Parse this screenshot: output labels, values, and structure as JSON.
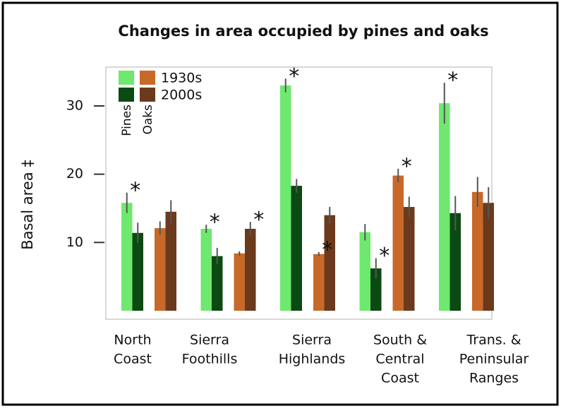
{
  "chart_data": {
    "type": "bar",
    "title": "Changes in area occupied by pines and oaks",
    "y_label": "Basal area ‡",
    "categories": [
      [
        "North",
        "Coast"
      ],
      [
        "Sierra",
        "Foothills"
      ],
      [
        "Sierra",
        "Highlands"
      ],
      [
        "South &",
        "Central",
        "Coast"
      ],
      [
        "Trans. &",
        "Peninsular",
        "Ranges"
      ]
    ],
    "series": [
      {
        "color": "#6ee86e",
        "values": [
          15.8,
          12.0,
          33.0,
          11.5,
          30.4
        ],
        "errors": [
          1.5,
          0.6,
          1.0,
          1.2,
          3.0
        ]
      },
      {
        "color": "#0b4a12",
        "values": [
          11.4,
          8.0,
          18.3,
          6.2,
          14.3
        ],
        "errors": [
          1.5,
          1.2,
          1.0,
          1.5,
          2.5
        ]
      },
      {
        "color": "#c8692a",
        "values": [
          12.1,
          8.4,
          8.3,
          19.8,
          17.4
        ],
        "errors": [
          1.0,
          0.3,
          0.3,
          1.0,
          2.2
        ]
      },
      {
        "color": "#6b3a1c",
        "values": [
          14.5,
          12.0,
          14.0,
          15.2,
          15.8
        ],
        "errors": [
          1.7,
          1.0,
          1.2,
          1.5,
          2.3
        ]
      }
    ],
    "legend": {
      "rows": [
        "1930s",
        "2000s"
      ],
      "columns": [
        "Pines",
        "Oaks"
      ]
    },
    "annotations": [
      {
        "text": "*",
        "category": 0,
        "series": 0
      },
      {
        "text": "*",
        "category": 1,
        "series": 0
      },
      {
        "text": "*",
        "category": 1,
        "series": 3
      },
      {
        "text": "*",
        "category": 2,
        "series": 0
      },
      {
        "text": "*",
        "category": 2,
        "series": 2
      },
      {
        "text": "*",
        "category": 3,
        "series": 1
      },
      {
        "text": "*",
        "category": 3,
        "series": 2
      },
      {
        "text": "*",
        "category": 4,
        "series": 0
      }
    ],
    "ylim": [
      0,
      36
    ],
    "yticks": [
      10,
      20,
      30
    ]
  }
}
